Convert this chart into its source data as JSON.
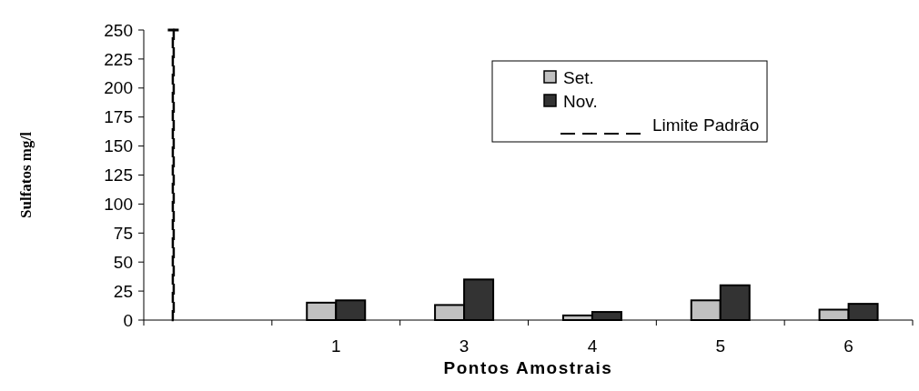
{
  "chart_data": {
    "type": "bar",
    "xlabel": "Pontos Amostrais",
    "ylabel": "Sulfatos mg/l",
    "categories": [
      null,
      "1",
      "3",
      "4",
      "5",
      "6"
    ],
    "series": [
      {
        "name": "Set.",
        "color": "#c0c0c0",
        "values": [
          null,
          15,
          13,
          4,
          17,
          9
        ]
      },
      {
        "name": "Nov.",
        "color": "#333333",
        "values": [
          null,
          17,
          35,
          7,
          30,
          14
        ]
      },
      {
        "name": "Limite Padrão",
        "color": "#000000",
        "line_style": "dashed",
        "values": [
          250,
          null,
          null,
          null,
          null,
          null
        ]
      }
    ],
    "ylim": [
      0,
      250
    ],
    "yticks": [
      0,
      25,
      50,
      75,
      100,
      125,
      150,
      175,
      200,
      225,
      250
    ],
    "grid": false,
    "legend": "top right"
  }
}
